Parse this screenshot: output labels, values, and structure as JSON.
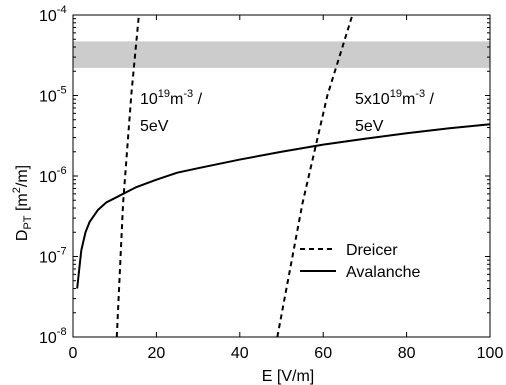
{
  "chart_data": {
    "type": "line",
    "xlabel": "E [V/m]",
    "ylabel": {
      "base": "D",
      "sub": "PT",
      "rest": " [m",
      "sup": "2",
      "end": "/m]"
    },
    "xlim": [
      0,
      100
    ],
    "ylim": [
      1e-08,
      0.0001
    ],
    "yscale": "log",
    "grid": false,
    "legend_position": "right, lower-middle",
    "x_ticks": [
      0,
      20,
      40,
      60,
      80,
      100
    ],
    "y_ticks": [
      {
        "value": 1e-08,
        "base": "10",
        "exp": "-8"
      },
      {
        "value": 1e-07,
        "base": "10",
        "exp": "-7"
      },
      {
        "value": 1e-06,
        "base": "10",
        "exp": "-6"
      },
      {
        "value": 1e-05,
        "base": "10",
        "exp": "-5"
      },
      {
        "value": 0.0001,
        "base": "10",
        "exp": "-4"
      }
    ],
    "shaded_band": {
      "ymin": 2.2e-05,
      "ymax": 4.7e-05,
      "color": "#cccccc"
    },
    "series": [
      {
        "name": "Dreicer",
        "style": "dashed",
        "color": "#000000",
        "x": [
          10.5,
          12,
          14,
          15.8
        ],
        "y": [
          1e-08,
          4.5e-07,
          1.05e-05,
          0.0001
        ]
      },
      {
        "name": "Dreicer",
        "style": "dashed",
        "color": "#000000",
        "x": [
          49,
          55,
          61,
          67
        ],
        "y": [
          1e-08,
          4.5e-07,
          1e-05,
          0.0001
        ]
      },
      {
        "name": "Avalanche",
        "style": "solid",
        "color": "#000000",
        "x": [
          1,
          1.5,
          2,
          3,
          4,
          6,
          8,
          10,
          12,
          15,
          20,
          25,
          30,
          40,
          50,
          60,
          70,
          80,
          90,
          100
        ],
        "y": [
          4e-08,
          7e-08,
          1.2e-07,
          2e-07,
          2.7e-07,
          3.8e-07,
          4.7e-07,
          5.3e-07,
          6e-07,
          7.2e-07,
          9e-07,
          1.1e-06,
          1.25e-06,
          1.6e-06,
          2e-06,
          2.45e-06,
          2.9e-06,
          3.4e-06,
          3.9e-06,
          4.4e-06
        ]
      }
    ],
    "annotations": [
      {
        "id": "left",
        "line1_base": "10",
        "line1_sup": "19",
        "line1_rest": "m",
        "line1_sup2": "-3",
        "line1_tail": " /",
        "line2": "5eV"
      },
      {
        "id": "right",
        "line1_base": "5x10",
        "line1_sup": "19",
        "line1_rest": "m",
        "line1_sup2": "-3",
        "line1_tail": " /",
        "line2": "5eV"
      }
    ],
    "legend": [
      {
        "label": "Dreicer",
        "style": "dashed"
      },
      {
        "label": "Avalanche",
        "style": "solid"
      }
    ]
  }
}
